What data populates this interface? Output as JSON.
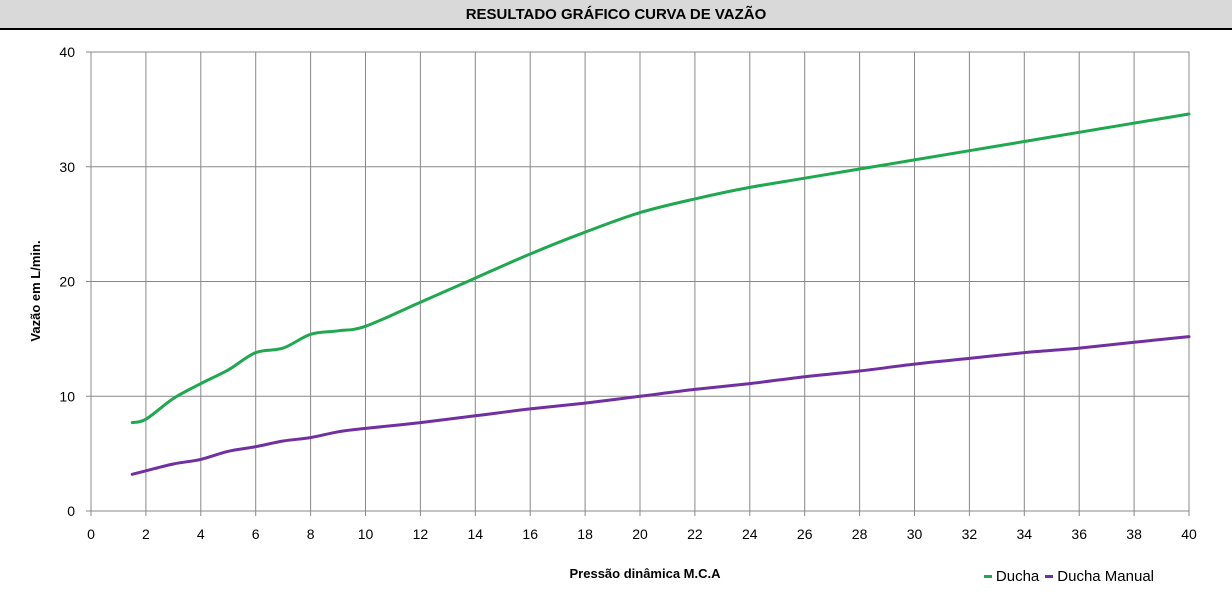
{
  "header": {
    "title": "RESULTADO GRÁFICO CURVA DE VAZÃO"
  },
  "chart_data": {
    "type": "line",
    "title": "RESULTADO GRÁFICO CURVA DE VAZÃO",
    "xlabel": "Pressão dinâmica M.C.A",
    "ylabel": "Vazão em L/min.",
    "xlim": [
      0,
      40
    ],
    "ylim": [
      0,
      40
    ],
    "xticks": [
      0,
      2,
      4,
      6,
      8,
      10,
      12,
      14,
      16,
      18,
      20,
      22,
      24,
      26,
      28,
      30,
      32,
      34,
      36,
      38,
      40
    ],
    "yticks": [
      0,
      10,
      20,
      30,
      40
    ],
    "grid": true,
    "legend_position": "bottom-right",
    "series": [
      {
        "name": "Ducha",
        "color": "#1fa84f",
        "x": [
          1.5,
          2,
          3,
          4,
          5,
          6,
          7,
          8,
          9,
          10,
          12,
          14,
          16,
          18,
          20,
          22,
          24,
          26,
          28,
          30,
          32,
          34,
          36,
          38,
          40
        ],
        "y": [
          7.7,
          8.0,
          9.8,
          11.1,
          12.3,
          13.8,
          14.2,
          15.4,
          15.7,
          16.1,
          18.2,
          20.3,
          22.4,
          24.3,
          26.0,
          27.2,
          28.2,
          29.0,
          29.8,
          30.6,
          31.4,
          32.2,
          33.0,
          33.8,
          34.6
        ]
      },
      {
        "name": "Ducha Manual",
        "color": "#7030a0",
        "x": [
          1.5,
          2,
          3,
          4,
          5,
          6,
          7,
          8,
          9,
          10,
          12,
          14,
          16,
          18,
          20,
          22,
          24,
          26,
          28,
          30,
          32,
          34,
          36,
          38,
          40
        ],
        "y": [
          3.2,
          3.5,
          4.1,
          4.5,
          5.2,
          5.6,
          6.1,
          6.4,
          6.9,
          7.2,
          7.7,
          8.3,
          8.9,
          9.4,
          10.0,
          10.6,
          11.1,
          11.7,
          12.2,
          12.8,
          13.3,
          13.8,
          14.2,
          14.7,
          15.2
        ]
      }
    ]
  }
}
